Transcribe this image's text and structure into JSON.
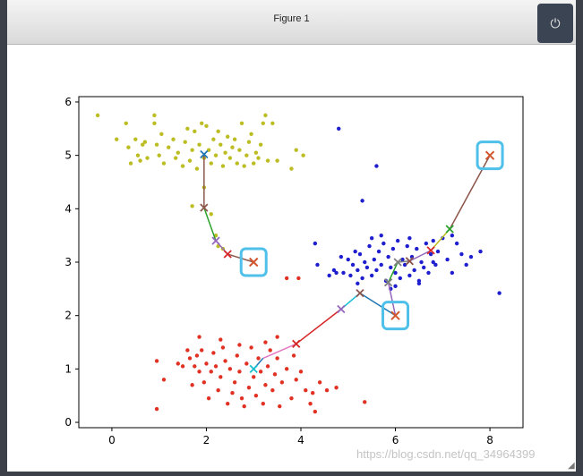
{
  "window": {
    "title": "Figure 1",
    "power_icon": "power-icon",
    "power_glyph": "⏻",
    "watermark": "https://blog.csdn.net/qq_34964399"
  },
  "chart_data": {
    "type": "scatter",
    "title": "",
    "xlabel": "",
    "ylabel": "",
    "xlim": [
      -0.7,
      8.7
    ],
    "ylim": [
      -0.1,
      6.1
    ],
    "xticks": [
      0,
      2,
      4,
      6,
      8
    ],
    "yticks": [
      0,
      1,
      2,
      3,
      4,
      5,
      6
    ],
    "grid": false,
    "clusters": [
      {
        "color": "#bcbd22",
        "center": [
          2.0,
          5.1
        ],
        "points": [
          [
            -0.3,
            5.75
          ],
          [
            0.1,
            5.3
          ],
          [
            0.3,
            5.6
          ],
          [
            0.35,
            5.15
          ],
          [
            0.4,
            4.85
          ],
          [
            0.5,
            5.3
          ],
          [
            0.55,
            5.0
          ],
          [
            0.6,
            4.9
          ],
          [
            0.65,
            5.2
          ],
          [
            0.7,
            5.25
          ],
          [
            0.75,
            4.95
          ],
          [
            0.9,
            5.75
          ],
          [
            0.9,
            5.6
          ],
          [
            0.95,
            5.2
          ],
          [
            1.0,
            5.0
          ],
          [
            1.05,
            5.4
          ],
          [
            1.1,
            4.85
          ],
          [
            1.2,
            5.15
          ],
          [
            1.3,
            5.3
          ],
          [
            1.35,
            4.95
          ],
          [
            1.4,
            5.05
          ],
          [
            1.5,
            4.8
          ],
          [
            1.55,
            5.25
          ],
          [
            1.6,
            5.5
          ],
          [
            1.65,
            4.9
          ],
          [
            1.7,
            5.1
          ],
          [
            1.75,
            5.45
          ],
          [
            1.8,
            4.75
          ],
          [
            1.85,
            5.2
          ],
          [
            1.9,
            5.6
          ],
          [
            1.95,
            4.95
          ],
          [
            2.0,
            5.55
          ],
          [
            2.05,
            5.1
          ],
          [
            2.1,
            4.85
          ],
          [
            2.15,
            5.3
          ],
          [
            2.2,
            5.0
          ],
          [
            2.25,
            5.45
          ],
          [
            2.3,
            5.2
          ],
          [
            2.35,
            4.8
          ],
          [
            2.4,
            5.05
          ],
          [
            2.45,
            5.35
          ],
          [
            2.5,
            4.95
          ],
          [
            2.55,
            5.15
          ],
          [
            2.6,
            5.3
          ],
          [
            2.65,
            4.85
          ],
          [
            2.7,
            5.1
          ],
          [
            2.75,
            5.6
          ],
          [
            2.8,
            4.8
          ],
          [
            2.85,
            5.0
          ],
          [
            2.9,
            5.25
          ],
          [
            2.95,
            5.4
          ],
          [
            3.0,
            4.85
          ],
          [
            3.05,
            5.05
          ],
          [
            3.1,
            4.95
          ],
          [
            3.15,
            5.2
          ],
          [
            3.2,
            5.6
          ],
          [
            3.25,
            5.75
          ],
          [
            3.3,
            4.9
          ],
          [
            3.4,
            5.6
          ],
          [
            3.5,
            4.9
          ],
          [
            3.8,
            4.75
          ],
          [
            3.9,
            5.1
          ],
          [
            4.05,
            5.0
          ],
          [
            1.7,
            4.05
          ],
          [
            1.95,
            4.4
          ],
          [
            2.1,
            3.9
          ],
          [
            2.2,
            3.5
          ],
          [
            2.25,
            3.3
          ],
          [
            2.35,
            3.25
          ]
        ]
      },
      {
        "color": "#1f1fcf",
        "center": [
          6.0,
          2.95
        ],
        "points": [
          [
            4.8,
            5.5
          ],
          [
            5.6,
            4.8
          ],
          [
            5.3,
            4.15
          ],
          [
            4.3,
            3.35
          ],
          [
            4.35,
            2.95
          ],
          [
            4.6,
            2.75
          ],
          [
            4.7,
            2.85
          ],
          [
            4.75,
            2.8
          ],
          [
            4.85,
            3.1
          ],
          [
            4.9,
            2.8
          ],
          [
            5.0,
            3.05
          ],
          [
            5.05,
            2.75
          ],
          [
            5.1,
            2.95
          ],
          [
            5.15,
            3.2
          ],
          [
            5.2,
            2.85
          ],
          [
            5.25,
            3.15
          ],
          [
            5.3,
            2.7
          ],
          [
            5.35,
            3.0
          ],
          [
            5.4,
            2.9
          ],
          [
            5.45,
            3.3
          ],
          [
            5.5,
            2.75
          ],
          [
            5.55,
            3.05
          ],
          [
            5.6,
            2.85
          ],
          [
            5.65,
            3.2
          ],
          [
            5.7,
            2.95
          ],
          [
            5.75,
            3.35
          ],
          [
            5.8,
            2.65
          ],
          [
            5.85,
            3.1
          ],
          [
            5.9,
            2.9
          ],
          [
            5.95,
            3.25
          ],
          [
            6.0,
            2.8
          ],
          [
            6.05,
            3.4
          ],
          [
            6.1,
            2.7
          ],
          [
            6.15,
            3.05
          ],
          [
            6.2,
            2.95
          ],
          [
            6.25,
            3.3
          ],
          [
            6.3,
            2.75
          ],
          [
            6.35,
            3.1
          ],
          [
            6.4,
            2.85
          ],
          [
            6.45,
            3.25
          ],
          [
            6.5,
            2.65
          ],
          [
            6.55,
            3.0
          ],
          [
            6.6,
            2.9
          ],
          [
            6.65,
            3.35
          ],
          [
            6.7,
            2.8
          ],
          [
            6.75,
            3.15
          ],
          [
            6.8,
            3.4
          ],
          [
            6.85,
            2.95
          ],
          [
            6.9,
            3.2
          ],
          [
            7.0,
            3.45
          ],
          [
            7.1,
            3.05
          ],
          [
            7.2,
            2.8
          ],
          [
            7.3,
            3.35
          ],
          [
            7.4,
            3.15
          ],
          [
            7.5,
            2.95
          ],
          [
            7.6,
            3.1
          ],
          [
            7.8,
            3.2
          ],
          [
            8.2,
            2.42
          ],
          [
            5.5,
            3.45
          ],
          [
            5.7,
            3.5
          ],
          [
            6.3,
            3.45
          ],
          [
            6.0,
            2.55
          ],
          [
            5.9,
            2.5
          ],
          [
            6.5,
            2.6
          ],
          [
            5.2,
            2.6
          ],
          [
            6.8,
            3.0
          ],
          [
            7.2,
            3.5
          ]
        ]
      },
      {
        "color": "#e03123",
        "center": [
          3.0,
          1.0
        ],
        "points": [
          [
            0.95,
            0.25
          ],
          [
            0.95,
            1.15
          ],
          [
            1.1,
            0.8
          ],
          [
            1.4,
            1.1
          ],
          [
            1.5,
            1.05
          ],
          [
            1.6,
            1.35
          ],
          [
            1.65,
            1.2
          ],
          [
            1.7,
            0.7
          ],
          [
            1.75,
            1.05
          ],
          [
            1.8,
            1.25
          ],
          [
            1.85,
            0.95
          ],
          [
            1.9,
            1.35
          ],
          [
            1.95,
            0.75
          ],
          [
            2.0,
            1.1
          ],
          [
            2.05,
            0.45
          ],
          [
            2.1,
            0.95
          ],
          [
            2.15,
            1.3
          ],
          [
            2.2,
            1.05
          ],
          [
            2.25,
            0.6
          ],
          [
            2.3,
            0.85
          ],
          [
            2.35,
            1.4
          ],
          [
            2.4,
            1.15
          ],
          [
            2.45,
            0.35
          ],
          [
            2.5,
            1.0
          ],
          [
            2.55,
            0.55
          ],
          [
            2.6,
            0.75
          ],
          [
            2.65,
            1.25
          ],
          [
            2.7,
            0.95
          ],
          [
            2.75,
            0.45
          ],
          [
            2.8,
            0.3
          ],
          [
            2.85,
            1.1
          ],
          [
            2.9,
            0.65
          ],
          [
            2.95,
            1.4
          ],
          [
            3.0,
            0.85
          ],
          [
            3.05,
            0.5
          ],
          [
            3.1,
            1.2
          ],
          [
            3.15,
            0.95
          ],
          [
            3.2,
            0.35
          ],
          [
            3.25,
            0.7
          ],
          [
            3.3,
            1.05
          ],
          [
            3.35,
            1.35
          ],
          [
            3.4,
            0.6
          ],
          [
            3.45,
            0.9
          ],
          [
            3.5,
            1.2
          ],
          [
            3.55,
            0.3
          ],
          [
            3.6,
            0.75
          ],
          [
            3.7,
            1.0
          ],
          [
            3.8,
            0.45
          ],
          [
            3.85,
            1.25
          ],
          [
            3.9,
            0.8
          ],
          [
            4.0,
            0.95
          ],
          [
            4.1,
            0.6
          ],
          [
            4.2,
            0.35
          ],
          [
            4.25,
            0.55
          ],
          [
            4.3,
            0.2
          ],
          [
            4.4,
            0.75
          ],
          [
            4.55,
            0.6
          ],
          [
            4.75,
            0.65
          ],
          [
            5.35,
            0.38
          ],
          [
            3.7,
            2.7
          ],
          [
            3.95,
            2.7
          ],
          [
            1.85,
            1.6
          ],
          [
            2.3,
            1.55
          ],
          [
            3.25,
            1.5
          ],
          [
            3.5,
            1.6
          ],
          [
            2.7,
            1.45
          ]
        ]
      }
    ],
    "trajectories": [
      {
        "from_cluster": 0,
        "segments": [
          {
            "from": [
              3.0,
              3.0
            ],
            "to": [
              2.45,
              3.15
            ],
            "color": "#8c564b"
          },
          {
            "from": [
              2.45,
              3.15
            ],
            "to": [
              2.2,
              3.4
            ],
            "color": "#9467bd"
          },
          {
            "from": [
              2.2,
              3.4
            ],
            "to": [
              1.95,
              4.02
            ],
            "color": "#2ca02c"
          },
          {
            "from": [
              1.95,
              4.02
            ],
            "to": [
              1.95,
              5.02
            ],
            "color": "#8c564b"
          }
        ],
        "markers": [
          {
            "at": [
              2.45,
              3.15
            ],
            "color": "#d62728"
          },
          {
            "at": [
              2.2,
              3.4
            ],
            "color": "#9467bd"
          },
          {
            "at": [
              1.95,
              4.02
            ],
            "color": "#8c564b"
          },
          {
            "at": [
              1.95,
              5.02
            ],
            "color": "#1f77b4"
          }
        ]
      },
      {
        "from_cluster": 1,
        "segments": [
          {
            "from": [
              8.0,
              5.0
            ],
            "to": [
              7.15,
              3.62
            ],
            "color": "#8c564b"
          },
          {
            "from": [
              7.15,
              3.62
            ],
            "to": [
              6.75,
              3.22
            ],
            "color": "#bcbd22"
          },
          {
            "from": [
              6.75,
              3.22
            ],
            "to": [
              6.3,
              3.02
            ],
            "color": "#9467bd"
          },
          {
            "from": [
              6.3,
              3.02
            ],
            "to": [
              6.05,
              3.0
            ],
            "color": "#7f7f7f"
          },
          {
            "from": [
              6.0,
              2.0
            ],
            "to": [
              5.85,
              2.62
            ],
            "color": "#9467bd"
          },
          {
            "from": [
              5.85,
              2.62
            ],
            "to": [
              6.05,
              3.0
            ],
            "color": "#2ca02c"
          }
        ],
        "markers": [
          {
            "at": [
              7.15,
              3.62
            ],
            "color": "#2ca02c"
          },
          {
            "at": [
              6.75,
              3.22
            ],
            "color": "#d62728"
          },
          {
            "at": [
              6.3,
              3.02
            ],
            "color": "#8c564b"
          },
          {
            "at": [
              6.05,
              3.0
            ],
            "color": "#7f7f7f"
          },
          {
            "at": [
              5.85,
              2.62
            ],
            "color": "#7f7f7f"
          }
        ]
      },
      {
        "from_cluster": 2,
        "segments": [
          {
            "from": [
              6.0,
              2.0
            ],
            "to": [
              5.25,
              2.42
            ],
            "color": "#1f77b4"
          },
          {
            "from": [
              5.25,
              2.42
            ],
            "to": [
              4.85,
              2.12
            ],
            "color": "#17becf"
          },
          {
            "from": [
              4.85,
              2.12
            ],
            "to": [
              3.9,
              1.47
            ],
            "color": "#d62728"
          },
          {
            "from": [
              3.9,
              1.47
            ],
            "to": [
              3.2,
              1.2
            ],
            "color": "#e377c2"
          },
          {
            "from": [
              3.2,
              1.2
            ],
            "to": [
              3.0,
              1.0
            ],
            "color": "#1f77b4"
          }
        ],
        "markers": [
          {
            "at": [
              5.25,
              2.42
            ],
            "color": "#8c564b"
          },
          {
            "at": [
              4.85,
              2.12
            ],
            "color": "#9467bd"
          },
          {
            "at": [
              3.9,
              1.47
            ],
            "color": "#d62728"
          },
          {
            "at": [
              3.0,
              1.0
            ],
            "color": "#17becf"
          }
        ]
      }
    ],
    "initial_centers": [
      {
        "at": [
          3.0,
          3.0
        ],
        "color": "#d2572e"
      },
      {
        "at": [
          6.0,
          2.0
        ],
        "color": "#d2572e"
      },
      {
        "at": [
          8.0,
          5.0
        ],
        "color": "#d2572e"
      }
    ],
    "highlight_box_color": "#4fc0ea"
  }
}
